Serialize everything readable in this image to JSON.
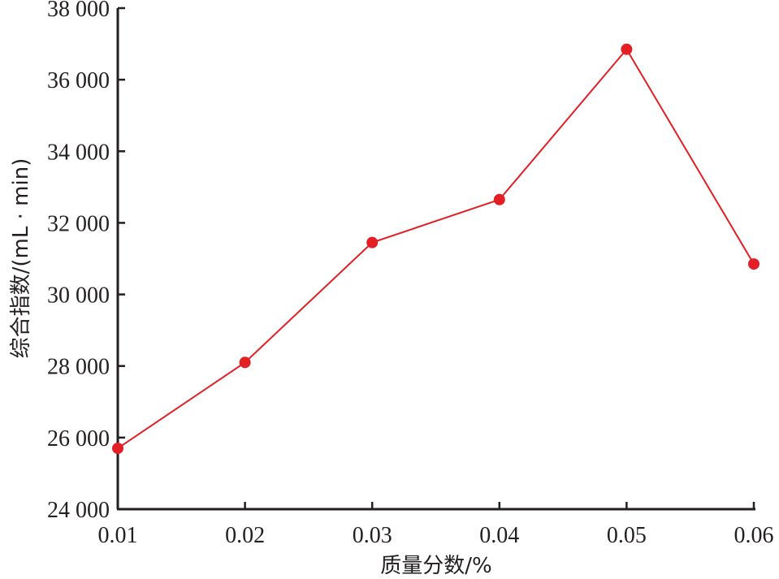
{
  "chart_data": {
    "type": "line",
    "title": "",
    "xlabel": "质量分数/%",
    "ylabel": "综合指数/(mL · min)",
    "x": [
      0.01,
      0.02,
      0.03,
      0.04,
      0.05,
      0.06
    ],
    "x_tick_labels": [
      "0.01",
      "0.02",
      "0.03",
      "0.04",
      "0.05",
      "0.06"
    ],
    "y_ticks": [
      24000,
      26000,
      28000,
      30000,
      32000,
      34000,
      36000,
      38000
    ],
    "y_tick_labels": [
      "24 000",
      "26 000",
      "28 000",
      "30 000",
      "32 000",
      "34 000",
      "36 000",
      "38 000"
    ],
    "xlim": [
      0.01,
      0.06
    ],
    "ylim": [
      24000,
      38000
    ],
    "grid": false,
    "series": [
      {
        "values": [
          25700,
          28100,
          31450,
          32650,
          36850,
          30850
        ]
      }
    ],
    "colors": {
      "series": "#e31e24",
      "axis": "#231f20"
    }
  }
}
